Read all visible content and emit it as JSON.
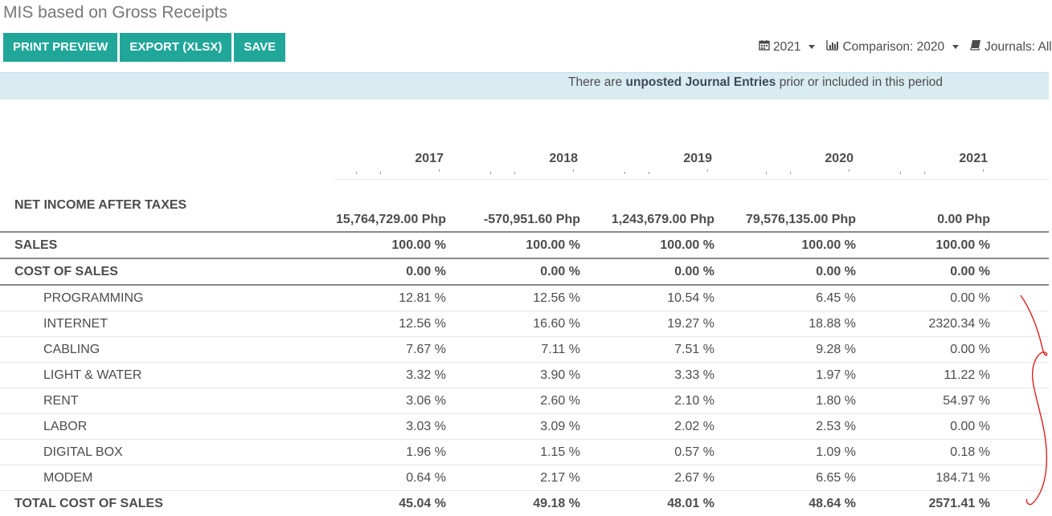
{
  "page": {
    "title": "MIS based on Gross Receipts"
  },
  "toolbar": {
    "print_label": "PRINT PREVIEW",
    "export_label": "EXPORT (XLSX)",
    "save_label": "SAVE"
  },
  "filters": {
    "year": "2021",
    "comparison": "Comparison: 2020",
    "journals": "Journals: All"
  },
  "banner": {
    "prefix": "There are ",
    "emphasis": "unposted Journal Entries",
    "suffix": " prior or included in this period"
  },
  "columns": [
    "2017",
    "2018",
    "2019",
    "2020",
    "2021"
  ],
  "rows": [
    {
      "label": "NET INCOME AFTER TAXES",
      "values": [
        "15,764,729.00 Php",
        "-570,951.60 Php",
        "1,243,679.00 Php",
        "79,576,135.00 Php",
        "0.00 Php"
      ]
    },
    {
      "label": "SALES",
      "values": [
        "100.00 %",
        "100.00 %",
        "100.00 %",
        "100.00 %",
        "100.00 %"
      ]
    },
    {
      "label": "COST OF SALES",
      "values": [
        "0.00 %",
        "0.00 %",
        "0.00 %",
        "0.00 %",
        "0.00 %"
      ]
    },
    {
      "label": "PROGRAMMING",
      "values": [
        "12.81 %",
        "12.56 %",
        "10.54 %",
        "6.45 %",
        "0.00 %"
      ]
    },
    {
      "label": "INTERNET",
      "values": [
        "12.56 %",
        "16.60 %",
        "19.27 %",
        "18.88 %",
        "2320.34 %"
      ]
    },
    {
      "label": "CABLING",
      "values": [
        "7.67 %",
        "7.11 %",
        "7.51 %",
        "9.28 %",
        "0.00 %"
      ]
    },
    {
      "label": "LIGHT & WATER",
      "values": [
        "3.32 %",
        "3.90 %",
        "3.33 %",
        "1.97 %",
        "11.22 %"
      ]
    },
    {
      "label": "RENT",
      "values": [
        "3.06 %",
        "2.60 %",
        "2.10 %",
        "1.80 %",
        "54.97 %"
      ]
    },
    {
      "label": "LABOR",
      "values": [
        "3.03 %",
        "3.09 %",
        "2.02 %",
        "2.53 %",
        "0.00 %"
      ]
    },
    {
      "label": "DIGITAL BOX",
      "values": [
        "1.96 %",
        "1.15 %",
        "0.57 %",
        "1.09 %",
        "0.18 %"
      ]
    },
    {
      "label": "MODEM",
      "values": [
        "0.64 %",
        "2.17 %",
        "2.67 %",
        "6.65 %",
        "184.71 %"
      ]
    },
    {
      "label": "TOTAL COST OF SALES",
      "values": [
        "45.04 %",
        "49.18 %",
        "48.01 %",
        "48.64 %",
        "2571.41 %"
      ]
    }
  ],
  "colors": {
    "accent": "#21a69a",
    "banner_bg": "#d9ecf2",
    "annotation": "#d92020"
  }
}
